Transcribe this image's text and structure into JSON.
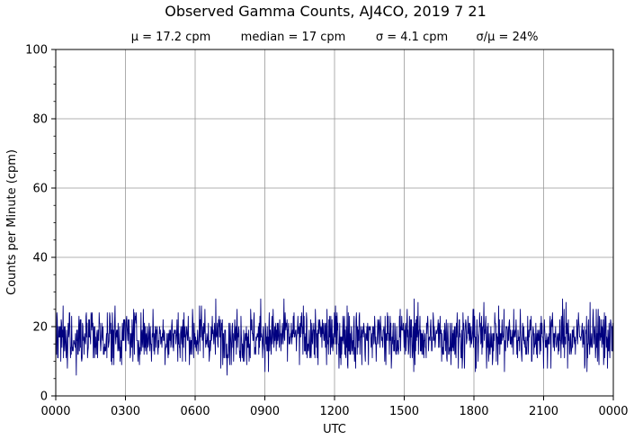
{
  "chart_data": {
    "type": "line",
    "title": "Observed Gamma Counts, AJ4CO, 2019 7 21",
    "subtitle": {
      "mean": "μ = 17.2 cpm",
      "median": "median = 17 cpm",
      "stdev": "σ = 4.1 cpm",
      "ratio": "σ/μ = 24%"
    },
    "xlabel": "UTC",
    "ylabel": "Counts per Minute (cpm)",
    "x_tick_labels": [
      "0000",
      "0300",
      "0600",
      "0900",
      "1200",
      "1500",
      "1800",
      "2100",
      "0000"
    ],
    "y_ticks": [
      0,
      20,
      40,
      60,
      80,
      100
    ],
    "xlim": [
      0,
      1440
    ],
    "ylim": [
      0,
      100
    ],
    "grid": true,
    "series": [
      {
        "color": "#00007f",
        "sampling": "one value per minute, 1440 values",
        "summary": {
          "mean": 17.2,
          "median": 17,
          "stdev": 4.1,
          "min": 6,
          "max": 29
        }
      }
    ]
  }
}
